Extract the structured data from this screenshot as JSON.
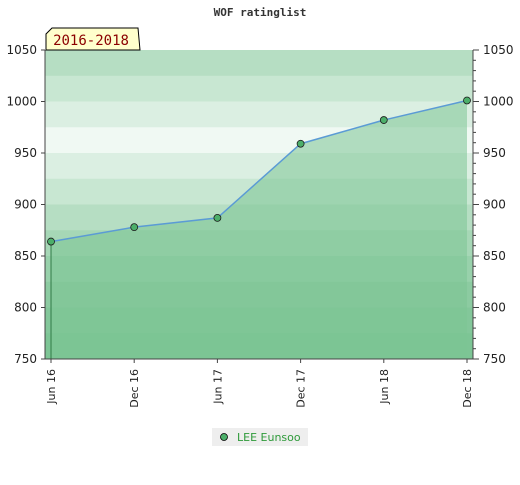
{
  "chart_data": {
    "type": "area",
    "title": "WOF ratinglist",
    "period_badge": "2016-2018",
    "x": [
      "Jun 16",
      "Dec 16",
      "Jun 17",
      "Dec 17",
      "Jun 18",
      "Dec 18"
    ],
    "series": [
      {
        "name": "LEE Eunsoo",
        "values": [
          864,
          878,
          887,
          959,
          982,
          1001
        ]
      }
    ],
    "ylim": [
      750,
      1050
    ],
    "y_ticks": [
      750,
      800,
      850,
      900,
      950,
      1000,
      1050
    ],
    "y_axis_both_sides": true,
    "grid": "horizontal bands",
    "legend_position": "bottom",
    "colors": {
      "line": "#5b9bd5",
      "marker": "#4caf6a",
      "area": "#7cc494",
      "band_dark": "#7cc494",
      "band_light": "#e8f5ec",
      "badge_bg": "#ffffcc",
      "badge_text": "#8b0000",
      "legend_text": "#2e9a3a"
    }
  }
}
